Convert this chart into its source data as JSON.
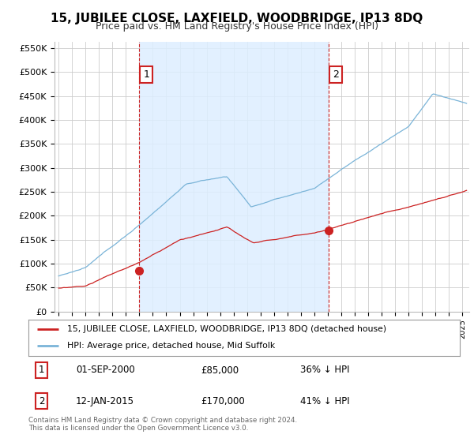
{
  "title": "15, JUBILEE CLOSE, LAXFIELD, WOODBRIDGE, IP13 8DQ",
  "subtitle": "Price paid vs. HM Land Registry's House Price Index (HPI)",
  "ylabel_ticks": [
    0,
    50000,
    100000,
    150000,
    200000,
    250000,
    300000,
    350000,
    400000,
    450000,
    500000,
    550000
  ],
  "ylabel_labels": [
    "£0",
    "£50K",
    "£100K",
    "£150K",
    "£200K",
    "£250K",
    "£300K",
    "£350K",
    "£400K",
    "£450K",
    "£500K",
    "£550K"
  ],
  "ylim": [
    0,
    562500
  ],
  "xlim_start": 1994.7,
  "xlim_end": 2025.5,
  "hpi_color": "#7ab4d8",
  "price_color": "#cc2222",
  "annotation_color": "#cc2222",
  "grid_color": "#cccccc",
  "bg_color": "#ffffff",
  "chart_bg": "#f0f8ff",
  "shade_color": "#ddeeff",
  "legend_label_price": "15, JUBILEE CLOSE, LAXFIELD, WOODBRIDGE, IP13 8DQ (detached house)",
  "legend_label_hpi": "HPI: Average price, detached house, Mid Suffolk",
  "transaction1_label": "01-SEP-2000",
  "transaction1_price": "£85,000",
  "transaction1_note": "36% ↓ HPI",
  "transaction2_label": "12-JAN-2015",
  "transaction2_price": "£170,000",
  "transaction2_note": "41% ↓ HPI",
  "footnote": "Contains HM Land Registry data © Crown copyright and database right 2024.\nThis data is licensed under the Open Government Licence v3.0.",
  "transaction1_x": 2001.0,
  "transaction1_y": 85000,
  "transaction2_x": 2015.04,
  "transaction2_y": 170000
}
